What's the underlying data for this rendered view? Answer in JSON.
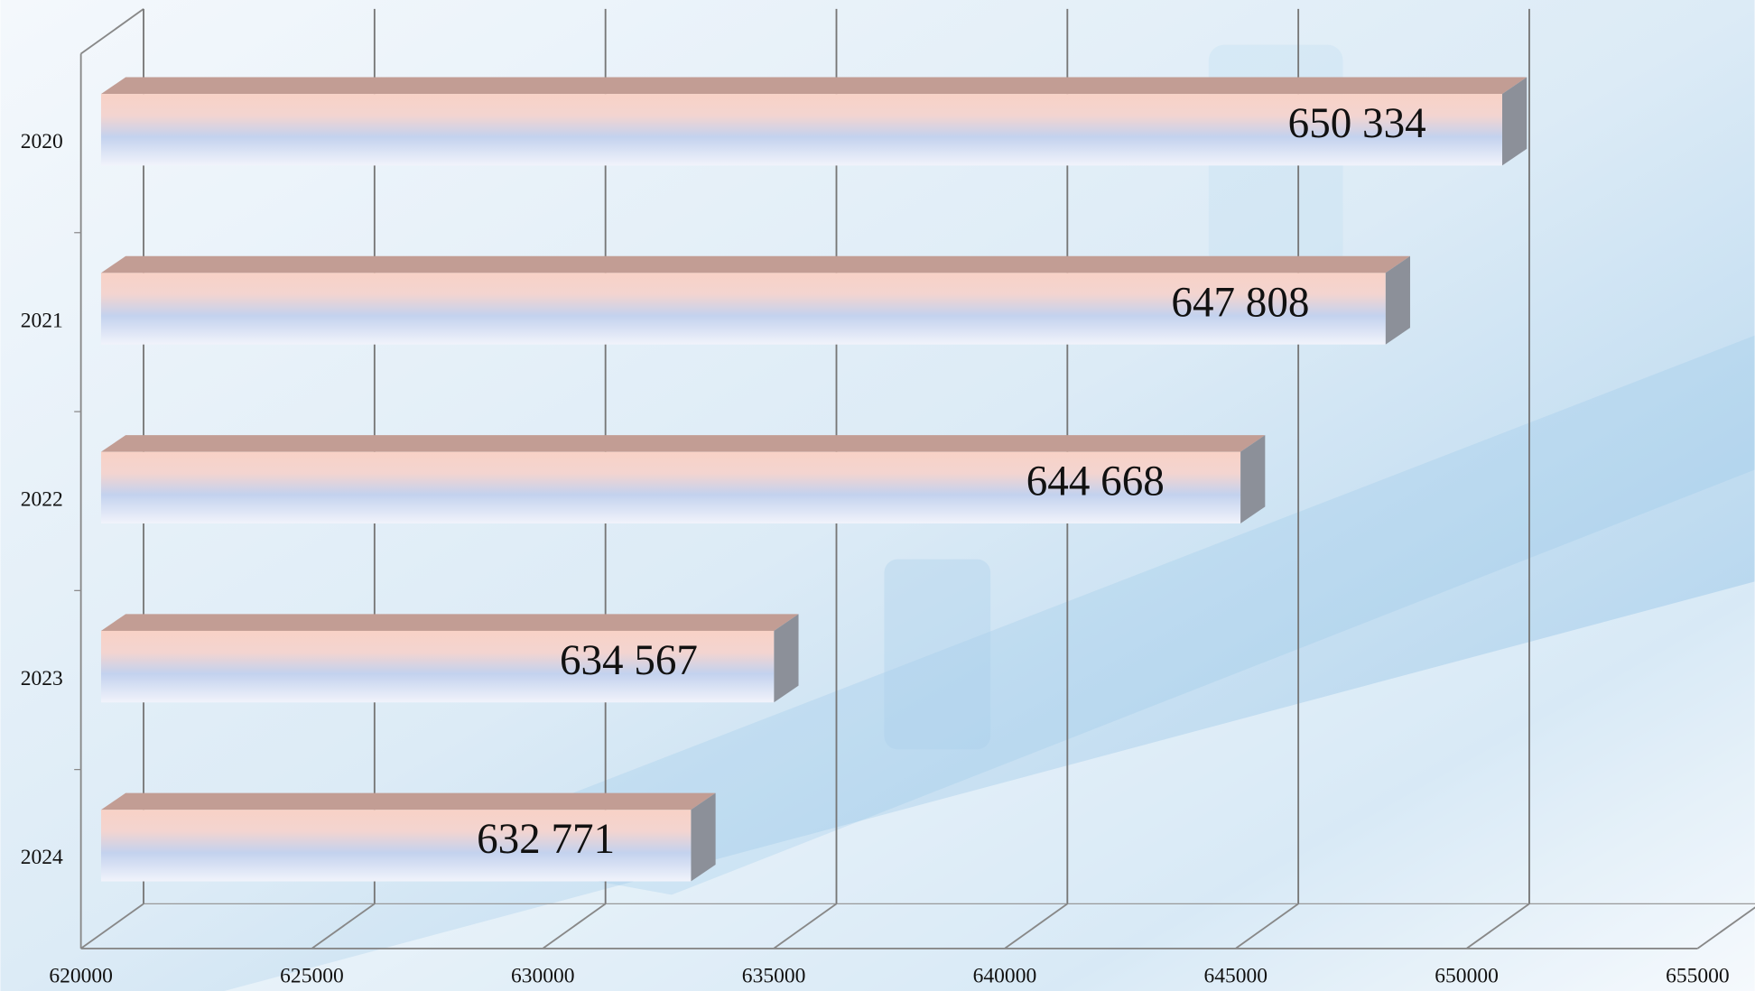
{
  "chart_data": {
    "type": "bar",
    "orientation": "horizontal",
    "categories": [
      "2020",
      "2021",
      "2022",
      "2023",
      "2024"
    ],
    "values": [
      650334,
      647808,
      644668,
      634567,
      632771
    ],
    "value_labels": [
      "650 334",
      "647 808",
      "644 668",
      "634 567",
      "632 771"
    ],
    "xlim": [
      620000,
      655000
    ],
    "xticks": [
      620000,
      625000,
      630000,
      635000,
      640000,
      645000,
      650000,
      655000
    ],
    "grid": true
  }
}
